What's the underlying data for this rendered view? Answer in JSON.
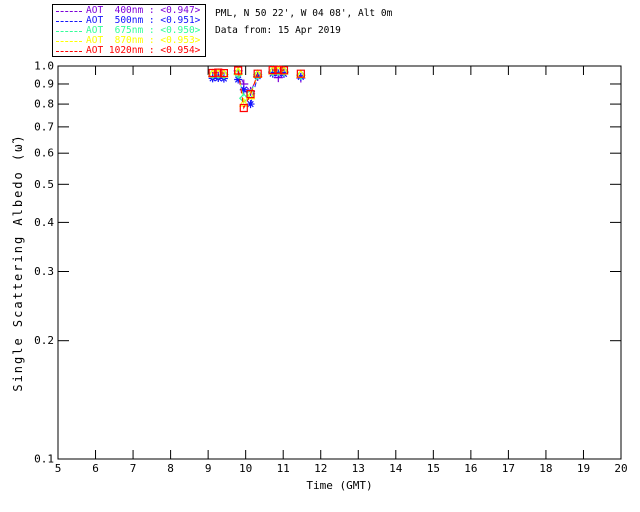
{
  "header": {
    "site_line": "PML, N 50 22', W 04 08', Alt 0m",
    "date_line": "Data from: 15 Apr 2019"
  },
  "legend": {
    "items": [
      {
        "label": "AOT  400nm : <0.947>",
        "color": "#7D00D8",
        "mean": "<0.947>"
      },
      {
        "label": "AOT  500nm : <0.951>",
        "color": "#1414FF",
        "mean": "<0.951>"
      },
      {
        "label": "AOT  675nm : <0.950>",
        "color": "#33FF99",
        "mean": "<0.950>"
      },
      {
        "label": "AOT  870nm : <0.953>",
        "color": "#FFFF00",
        "mean": "<0.953>"
      },
      {
        "label": "AOT 1020nm : <0.954>",
        "color": "#FF0000",
        "mean": "<0.954>"
      }
    ]
  },
  "chart_data": {
    "type": "scatter",
    "title": "",
    "xlabel": "Time (GMT)",
    "ylabel": "Single Scattering Albedo (ω̃)",
    "xlim": [
      5,
      20
    ],
    "ylim": [
      0.1,
      1.0
    ],
    "yscale": "log",
    "grid": false,
    "legend_position": "top-left",
    "x_ticks": [
      5,
      6,
      7,
      8,
      9,
      10,
      11,
      12,
      13,
      14,
      15,
      16,
      17,
      18,
      19,
      20
    ],
    "y_ticks": [
      1.0,
      0.9,
      0.8,
      0.7,
      0.6,
      0.5,
      0.4,
      0.3,
      0.2,
      0.1
    ],
    "line_style": "dashed",
    "series": [
      {
        "name": "AOT 400nm",
        "color": "#7D00D8",
        "marker": "plus",
        "mean": 0.947,
        "segments": [
          {
            "t": [
              9.12,
              9.27,
              9.42
            ],
            "ssa": [
              0.94,
              0.942,
              0.938
            ]
          },
          {
            "t": [
              9.8,
              9.95,
              10.13,
              10.32
            ],
            "ssa": [
              0.972,
              0.9,
              0.862,
              0.94
            ]
          },
          {
            "t": [
              10.72,
              10.87,
              11.02
            ],
            "ssa": [
              0.962,
              0.934,
              0.962
            ]
          },
          {
            "t": [
              11.47
            ],
            "ssa": [
              0.932
            ]
          }
        ]
      },
      {
        "name": "AOT 500nm",
        "color": "#1414FF",
        "marker": "asterisk",
        "mean": 0.951,
        "segments": [
          {
            "t": [
              9.12,
              9.27,
              9.42
            ],
            "ssa": [
              0.93,
              0.932,
              0.929
            ]
          },
          {
            "t": [
              9.8,
              9.95,
              10.13,
              10.32
            ],
            "ssa": [
              0.924,
              0.87,
              0.8,
              0.942
            ]
          },
          {
            "t": [
              10.72,
              10.87,
              11.02
            ],
            "ssa": [
              0.956,
              0.958,
              0.955
            ]
          },
          {
            "t": [
              11.47
            ],
            "ssa": [
              0.938
            ]
          }
        ]
      },
      {
        "name": "AOT 675nm",
        "color": "#33FF99",
        "marker": "diamond",
        "mean": 0.95,
        "segments": [
          {
            "t": [
              9.12,
              9.27,
              9.42
            ],
            "ssa": [
              0.952,
              0.954,
              0.951
            ]
          },
          {
            "t": [
              9.8,
              9.95,
              10.13,
              10.32
            ],
            "ssa": [
              0.955,
              0.828,
              0.85,
              0.95
            ]
          },
          {
            "t": [
              10.72,
              10.87,
              11.02
            ],
            "ssa": [
              0.968,
              0.97,
              0.968
            ]
          },
          {
            "t": [
              11.47
            ],
            "ssa": [
              0.948
            ]
          }
        ]
      },
      {
        "name": "AOT 870nm",
        "color": "#FFFF00",
        "marker": "triangle",
        "mean": 0.953,
        "segments": [
          {
            "t": [
              9.12,
              9.27,
              9.42
            ],
            "ssa": [
              0.956,
              0.958,
              0.955
            ]
          },
          {
            "t": [
              9.8,
              9.95,
              10.13,
              10.32
            ],
            "ssa": [
              0.968,
              0.805,
              0.84,
              0.952
            ]
          },
          {
            "t": [
              10.72,
              10.87,
              11.02
            ],
            "ssa": [
              0.972,
              0.974,
              0.971
            ]
          },
          {
            "t": [
              11.47
            ],
            "ssa": [
              0.952
            ]
          }
        ]
      },
      {
        "name": "AOT 1020nm",
        "color": "#FF0000",
        "marker": "square",
        "mean": 0.954,
        "segments": [
          {
            "t": [
              9.12,
              9.27,
              9.42
            ],
            "ssa": [
              0.96,
              0.962,
              0.959
            ]
          },
          {
            "t": [
              9.8,
              9.95,
              10.13,
              10.32
            ],
            "ssa": [
              0.974,
              0.782,
              0.848,
              0.956
            ]
          },
          {
            "t": [
              10.72,
              10.87,
              11.02
            ],
            "ssa": [
              0.976,
              0.978,
              0.975
            ]
          },
          {
            "t": [
              11.47
            ],
            "ssa": [
              0.956
            ]
          }
        ]
      }
    ]
  }
}
